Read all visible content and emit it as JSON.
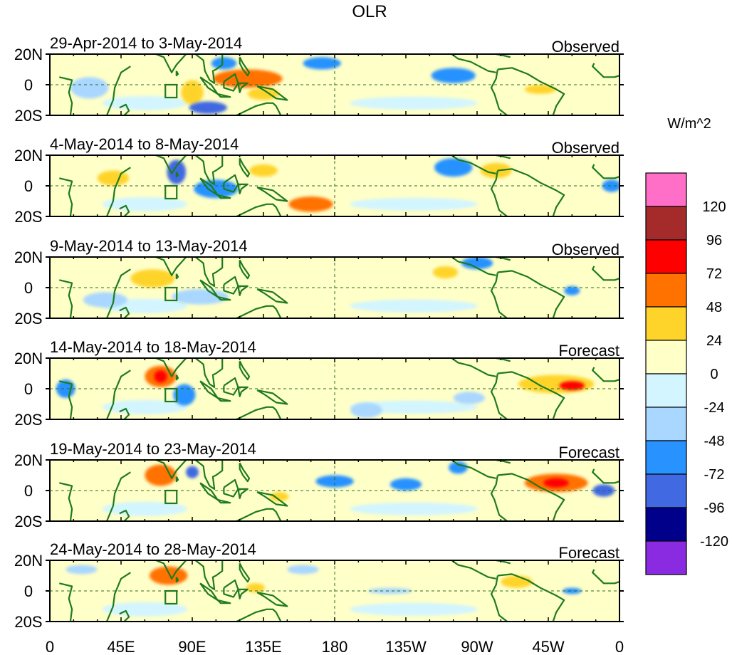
{
  "chart_data": {
    "type": "heatmap",
    "title": "OLR",
    "units": "W/m^2",
    "variable": "Outgoing Longwave Radiation anomaly",
    "x_axis": {
      "range": [
        0,
        360
      ],
      "ticks": [
        {
          "lon": 0,
          "label": "0"
        },
        {
          "lon": 45,
          "label": "45E"
        },
        {
          "lon": 90,
          "label": "90E"
        },
        {
          "lon": 135,
          "label": "135E"
        },
        {
          "lon": 180,
          "label": "180"
        },
        {
          "lon": 225,
          "label": "135W"
        },
        {
          "lon": 270,
          "label": "90W"
        },
        {
          "lon": 315,
          "label": "45W"
        },
        {
          "lon": 360,
          "label": "0"
        }
      ]
    },
    "y_axis": {
      "range": [
        -20,
        20
      ],
      "ticks": [
        {
          "lat": 20,
          "label": "20N"
        },
        {
          "lat": 0,
          "label": "0"
        },
        {
          "lat": -20,
          "label": "20S"
        }
      ]
    },
    "colorbar": {
      "levels": [
        "120",
        "96",
        "72",
        "48",
        "24",
        "0",
        "-24",
        "-48",
        "-72",
        "-96",
        "-120"
      ],
      "colors": [
        "#ff6ec7",
        "#a52a2a",
        "#ff0000",
        "#ff7200",
        "#ffd42a",
        "#ffffc8",
        "#d2f5ff",
        "#a9d7ff",
        "#2892ff",
        "#4169e1",
        "#00008b",
        "#8a2be2"
      ]
    },
    "panels": [
      {
        "date_label": "29-Apr-2014 to 3-May-2014",
        "status": "Observed",
        "blobs": [
          {
            "lon": 125,
            "lat": 4,
            "rx": 22,
            "ry": 6,
            "v": 48
          },
          {
            "lon": 90,
            "lat": -5,
            "rx": 7,
            "ry": 8,
            "v": 24
          },
          {
            "lon": 135,
            "lat": -6,
            "rx": 10,
            "ry": 4,
            "v": 24
          },
          {
            "lon": 100,
            "lat": -15,
            "rx": 12,
            "ry": 4,
            "v": -72
          },
          {
            "lon": 110,
            "lat": 14,
            "rx": 8,
            "ry": 4,
            "v": -48
          },
          {
            "lon": 172,
            "lat": 14,
            "rx": 12,
            "ry": 4,
            "v": -48
          },
          {
            "lon": 255,
            "lat": 6,
            "rx": 14,
            "ry": 5,
            "v": -48
          },
          {
            "lon": 25,
            "lat": -2,
            "rx": 12,
            "ry": 7,
            "v": -24
          },
          {
            "lon": 310,
            "lat": -3,
            "rx": 10,
            "ry": 3,
            "v": 24
          }
        ]
      },
      {
        "date_label": "4-May-2014 to 8-May-2014",
        "status": "Observed",
        "blobs": [
          {
            "lon": 165,
            "lat": -12,
            "rx": 14,
            "ry": 5,
            "v": 48
          },
          {
            "lon": 135,
            "lat": 10,
            "rx": 9,
            "ry": 4,
            "v": 24
          },
          {
            "lon": 80,
            "lat": 9,
            "rx": 6,
            "ry": 8,
            "v": -72
          },
          {
            "lon": 105,
            "lat": -2,
            "rx": 14,
            "ry": 6,
            "v": -48
          },
          {
            "lon": 255,
            "lat": 12,
            "rx": 12,
            "ry": 6,
            "v": -48
          },
          {
            "lon": 282,
            "lat": 10,
            "rx": 10,
            "ry": 5,
            "v": 24
          },
          {
            "lon": 355,
            "lat": 0,
            "rx": 6,
            "ry": 4,
            "v": -48
          },
          {
            "lon": 40,
            "lat": 5,
            "rx": 10,
            "ry": 5,
            "v": 24
          }
        ]
      },
      {
        "date_label": "9-May-2014 to 13-May-2014",
        "status": "Observed",
        "blobs": [
          {
            "lon": 65,
            "lat": 6,
            "rx": 14,
            "ry": 6,
            "v": 24
          },
          {
            "lon": 250,
            "lat": 10,
            "rx": 8,
            "ry": 4,
            "v": 24
          },
          {
            "lon": 270,
            "lat": 16,
            "rx": 10,
            "ry": 4,
            "v": -48
          },
          {
            "lon": 35,
            "lat": -8,
            "rx": 14,
            "ry": 5,
            "v": -24
          },
          {
            "lon": 95,
            "lat": -6,
            "rx": 18,
            "ry": 5,
            "v": -24
          },
          {
            "lon": 330,
            "lat": -2,
            "rx": 5,
            "ry": 3,
            "v": -48
          }
        ]
      },
      {
        "date_label": "14-May-2014 to 18-May-2014",
        "status": "Forecast",
        "blobs": [
          {
            "lon": 70,
            "lat": 8,
            "rx": 10,
            "ry": 7,
            "v": 48
          },
          {
            "lon": 70,
            "lat": 8,
            "rx": 4,
            "ry": 4,
            "v": 72
          },
          {
            "lon": 320,
            "lat": 3,
            "rx": 24,
            "ry": 6,
            "v": 24
          },
          {
            "lon": 330,
            "lat": 2,
            "rx": 8,
            "ry": 3,
            "v": 72
          },
          {
            "lon": 10,
            "lat": 0,
            "rx": 6,
            "ry": 6,
            "v": -48
          },
          {
            "lon": 85,
            "lat": -4,
            "rx": 7,
            "ry": 7,
            "v": -48
          },
          {
            "lon": 200,
            "lat": -14,
            "rx": 10,
            "ry": 5,
            "v": -24
          },
          {
            "lon": 265,
            "lat": -6,
            "rx": 10,
            "ry": 4,
            "v": -24
          }
        ]
      },
      {
        "date_label": "19-May-2014 to 23-May-2014",
        "status": "Forecast",
        "blobs": [
          {
            "lon": 70,
            "lat": 10,
            "rx": 10,
            "ry": 7,
            "v": 48
          },
          {
            "lon": 320,
            "lat": 5,
            "rx": 20,
            "ry": 6,
            "v": 48
          },
          {
            "lon": 320,
            "lat": 5,
            "rx": 8,
            "ry": 3,
            "v": 72
          },
          {
            "lon": 90,
            "lat": 12,
            "rx": 4,
            "ry": 4,
            "v": -72
          },
          {
            "lon": 180,
            "lat": 6,
            "rx": 12,
            "ry": 4,
            "v": -48
          },
          {
            "lon": 225,
            "lat": 4,
            "rx": 10,
            "ry": 4,
            "v": -48
          },
          {
            "lon": 350,
            "lat": 0,
            "rx": 7,
            "ry": 4,
            "v": -72
          },
          {
            "lon": 258,
            "lat": 15,
            "rx": 6,
            "ry": 4,
            "v": -48
          },
          {
            "lon": 145,
            "lat": -4,
            "rx": 6,
            "ry": 3,
            "v": 24
          }
        ]
      },
      {
        "date_label": "24-May-2014 to 28-May-2014",
        "status": "Forecast",
        "blobs": [
          {
            "lon": 75,
            "lat": 10,
            "rx": 12,
            "ry": 6,
            "v": 48
          },
          {
            "lon": 295,
            "lat": 6,
            "rx": 10,
            "ry": 4,
            "v": 24
          },
          {
            "lon": 130,
            "lat": 2,
            "rx": 6,
            "ry": 3,
            "v": 24
          },
          {
            "lon": 160,
            "lat": 14,
            "rx": 10,
            "ry": 3,
            "v": -24
          },
          {
            "lon": 20,
            "lat": 14,
            "rx": 10,
            "ry": 3,
            "v": -24
          },
          {
            "lon": 330,
            "lat": 0,
            "rx": 6,
            "ry": 2,
            "v": -48
          },
          {
            "lon": 215,
            "lat": 0,
            "rx": 14,
            "ry": 2,
            "v": -24
          }
        ]
      }
    ]
  }
}
